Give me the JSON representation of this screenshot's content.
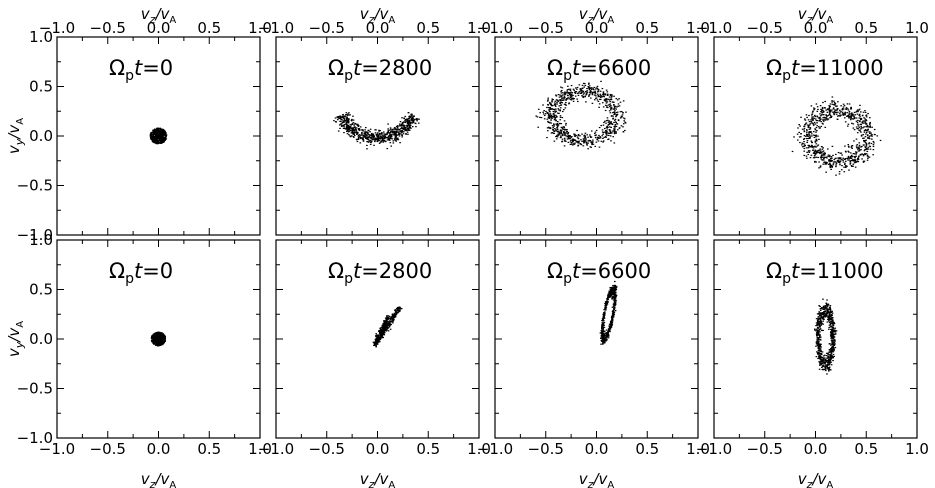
{
  "figure": {
    "top_axis_label": {
      "var": "v",
      "sub": "z",
      "den_var": "v",
      "den_sub": "A"
    },
    "bottom_axis_label": {
      "var": "v",
      "sub": "z",
      "den_var": "v",
      "den_sub": "A"
    },
    "left_axis_label": {
      "var": "v",
      "sub": "y",
      "den_var": "v",
      "den_sub": "A"
    }
  },
  "chart_data": [
    {
      "type": "scatter",
      "row": 0,
      "col": 0,
      "annotation": {
        "symbol": "Ω",
        "sub": "p",
        "t": "t",
        "value": "0"
      },
      "xlim": [
        -1.0,
        1.0
      ],
      "ylim": [
        -1.0,
        1.0
      ],
      "xticks": [
        "−1.0",
        "−0.5",
        "0.0",
        "0.5",
        "1.0"
      ],
      "yticks": [
        "−1.0",
        "−0.5",
        "0.0",
        "0.5",
        "1.0"
      ],
      "distribution": {
        "shape": "blob",
        "center": [
          0.0,
          0.0
        ],
        "radius": 0.08,
        "n": 500
      }
    },
    {
      "type": "scatter",
      "row": 0,
      "col": 1,
      "annotation": {
        "symbol": "Ω",
        "sub": "p",
        "t": "t",
        "value": "2800"
      },
      "xlim": [
        -1.0,
        1.0
      ],
      "ylim": [
        -1.0,
        1.0
      ],
      "xticks": [
        "−1.0",
        "−0.5",
        "0.0",
        "0.5",
        "1.0"
      ],
      "yticks": [
        "−1.0",
        "−0.5",
        "0.0",
        "0.5",
        "1.0"
      ],
      "distribution": {
        "shape": "arc",
        "center": [
          0.0,
          0.38
        ],
        "r": 0.4,
        "theta_deg": [
          205,
          335
        ],
        "thickness": 0.06,
        "n": 700
      }
    },
    {
      "type": "scatter",
      "row": 0,
      "col": 2,
      "annotation": {
        "symbol": "Ω",
        "sub": "p",
        "t": "t",
        "value": "6600"
      },
      "xlim": [
        -1.0,
        1.0
      ],
      "ylim": [
        -1.0,
        1.0
      ],
      "xticks": [
        "−1.0",
        "−0.5",
        "0.0",
        "0.5",
        "1.0"
      ],
      "yticks": [
        "−1.0",
        "−0.5",
        "0.0",
        "0.5",
        "1.0"
      ],
      "distribution": {
        "shape": "ring",
        "center": [
          -0.12,
          0.2
        ],
        "rx": 0.32,
        "ry": 0.25,
        "thickness": 0.06,
        "n": 800
      }
    },
    {
      "type": "scatter",
      "row": 0,
      "col": 3,
      "annotation": {
        "symbol": "Ω",
        "sub": "p",
        "t": "t",
        "value": "11000"
      },
      "xlim": [
        -1.0,
        1.0
      ],
      "ylim": [
        -1.0,
        1.0
      ],
      "xticks": [
        "−1.0",
        "−0.5",
        "0.0",
        "0.5",
        "1.0"
      ],
      "yticks": [
        "−1.0",
        "−0.5",
        "0.0",
        "0.5",
        "1.0"
      ],
      "distribution": {
        "shape": "ring",
        "center": [
          0.22,
          0.0
        ],
        "rx": 0.3,
        "ry": 0.27,
        "thickness": 0.06,
        "n": 800
      }
    },
    {
      "type": "scatter",
      "row": 1,
      "col": 0,
      "annotation": {
        "symbol": "Ω",
        "sub": "p",
        "t": "t",
        "value": "0"
      },
      "xlim": [
        -1.0,
        1.0
      ],
      "ylim": [
        -1.0,
        1.0
      ],
      "xticks": [
        "−1.0",
        "−0.5",
        "0.0",
        "0.5",
        "1.0"
      ],
      "yticks": [
        "−1.0",
        "−0.5",
        "0.0",
        "0.5",
        "1.0"
      ],
      "distribution": {
        "shape": "blob",
        "center": [
          0.0,
          0.0
        ],
        "radius": 0.07,
        "n": 500
      }
    },
    {
      "type": "scatter",
      "row": 1,
      "col": 1,
      "annotation": {
        "symbol": "Ω",
        "sub": "p",
        "t": "t",
        "value": "2800"
      },
      "xlim": [
        -1.0,
        1.0
      ],
      "ylim": [
        -1.0,
        1.0
      ],
      "xticks": [
        "−1.0",
        "−0.5",
        "0.0",
        "0.5",
        "1.0"
      ],
      "yticks": [
        "−1.0",
        "−0.5",
        "0.0",
        "0.5",
        "1.0"
      ],
      "distribution": {
        "shape": "v",
        "vertex": [
          -0.02,
          -0.05
        ],
        "arm1_end": [
          0.1,
          0.22
        ],
        "arm2_end": [
          0.22,
          0.32
        ],
        "n": 450
      }
    },
    {
      "type": "scatter",
      "row": 1,
      "col": 2,
      "annotation": {
        "symbol": "Ω",
        "sub": "p",
        "t": "t",
        "value": "6600"
      },
      "xlim": [
        -1.0,
        1.0
      ],
      "ylim": [
        -1.0,
        1.0
      ],
      "xticks": [
        "−1.0",
        "−0.5",
        "0.0",
        "0.5",
        "1.0"
      ],
      "yticks": [
        "−1.0",
        "−0.5",
        "0.0",
        "0.5",
        "1.0"
      ],
      "distribution": {
        "shape": "ring",
        "center": [
          0.12,
          0.25
        ],
        "rx": 0.045,
        "ry": 0.25,
        "rotation_deg": -10,
        "thickness": 0.035,
        "n": 550
      }
    },
    {
      "type": "scatter",
      "row": 1,
      "col": 3,
      "annotation": {
        "symbol": "Ω",
        "sub": "p",
        "t": "t",
        "value": "11000"
      },
      "xlim": [
        -1.0,
        1.0
      ],
      "ylim": [
        -1.0,
        1.0
      ],
      "xticks": [
        "−1.0",
        "−0.5",
        "0.0",
        "0.5",
        "1.0"
      ],
      "yticks": [
        "−1.0",
        "−0.5",
        "0.0",
        "0.5",
        "1.0"
      ],
      "distribution": {
        "shape": "ring",
        "center": [
          0.1,
          0.02
        ],
        "rx": 0.075,
        "ry": 0.27,
        "thickness": 0.05,
        "n": 650
      }
    }
  ]
}
